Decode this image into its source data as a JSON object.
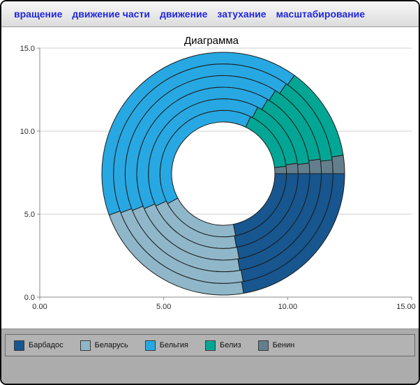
{
  "menu": {
    "items": [
      {
        "label": "вращение"
      },
      {
        "label": "движение части"
      },
      {
        "label": "движение"
      },
      {
        "label": "затухание"
      },
      {
        "label": "масштабирование"
      }
    ]
  },
  "chart_data": {
    "type": "pie",
    "subtype": "concentric-multi-ring-donut",
    "title": "Диаграмма",
    "categories": [
      "Барбадос",
      "Беларусь",
      "Бельгия",
      "Белиз",
      "Бенин"
    ],
    "palette": [
      "#17568F",
      "#8FB7C9",
      "#27A8E2",
      "#03A694",
      "#637F8D"
    ],
    "series": [
      {
        "values": [
          2.35,
          2.18,
          4.3,
          1.72,
          0.2
        ]
      },
      {
        "values": [
          2.4,
          2.24,
          4.3,
          1.64,
          0.24
        ]
      },
      {
        "values": [
          2.38,
          2.3,
          4.34,
          1.56,
          0.21
        ]
      },
      {
        "values": [
          2.44,
          2.36,
          4.38,
          1.5,
          0.26
        ]
      },
      {
        "values": [
          2.42,
          2.42,
          4.44,
          1.45,
          0.22
        ]
      },
      {
        "values": [
          2.48,
          2.46,
          4.5,
          1.4,
          0.27
        ]
      }
    ],
    "direction": "clockwise",
    "start_angle_deg": 0,
    "inner_radius_ratio": 0.425,
    "x_axis": {
      "lim": [
        0,
        15
      ],
      "ticks": [
        0,
        5,
        10,
        15
      ],
      "tick_labels": [
        "0.00",
        "5.00",
        "10.00",
        "15.00"
      ]
    },
    "y_axis": {
      "lim": [
        0,
        15
      ],
      "ticks": [
        0,
        5,
        10,
        15
      ],
      "tick_labels": [
        "0.0",
        "5.0",
        "10.0",
        "15.0"
      ]
    },
    "grid": "horizontal",
    "legend_position": "bottom"
  },
  "legend": {
    "items": [
      {
        "label": "Барбадос",
        "color": "#17568F"
      },
      {
        "label": "Беларусь",
        "color": "#8FB7C9"
      },
      {
        "label": "Бельгия",
        "color": "#27A8E2"
      },
      {
        "label": "Белиз",
        "color": "#03A694"
      },
      {
        "label": "Бенин",
        "color": "#637F8D"
      }
    ]
  }
}
